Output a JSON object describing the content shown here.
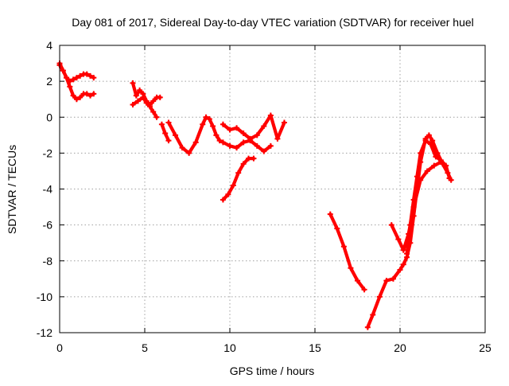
{
  "chart_data": {
    "type": "line",
    "title": "Day 081 of 2017, Sidereal Day-to-day VTEC variation (SDTVAR) for receiver huel",
    "xlabel": "GPS time / hours",
    "ylabel": "SDTVAR / TECUs",
    "xlim": [
      0,
      25
    ],
    "ylim": [
      -12,
      4
    ],
    "xticks": [
      0,
      5,
      10,
      15,
      20,
      25
    ],
    "yticks": [
      -12,
      -10,
      -8,
      -6,
      -4,
      -2,
      0,
      2,
      4
    ],
    "grid": true,
    "colors": {
      "series": "#ff0000"
    },
    "marker": "plus",
    "series": [
      {
        "x": [
          0.0,
          0.2,
          0.4,
          0.6,
          0.8,
          1.0,
          1.2,
          1.4,
          1.6,
          1.8,
          2.0
        ],
        "y": [
          3.0,
          2.6,
          2.2,
          2.0,
          2.1,
          2.2,
          2.3,
          2.4,
          2.4,
          2.3,
          2.2
        ]
      },
      {
        "x": [
          0.0,
          0.2,
          0.4,
          0.6,
          0.8,
          1.0,
          1.2,
          1.4,
          1.6,
          1.8,
          2.0
        ],
        "y": [
          2.9,
          2.6,
          2.2,
          1.7,
          1.2,
          1.0,
          1.1,
          1.3,
          1.3,
          1.2,
          1.3
        ]
      },
      {
        "x": [
          4.3,
          4.5,
          4.7,
          4.9,
          5.1,
          5.3,
          5.5,
          5.7,
          5.9
        ],
        "y": [
          1.9,
          1.2,
          1.5,
          1.3,
          0.9,
          0.7,
          0.9,
          1.1,
          1.1
        ]
      },
      {
        "x": [
          4.3,
          4.6,
          4.9,
          5.1,
          5.3,
          5.5,
          5.7
        ],
        "y": [
          0.7,
          0.9,
          1.1,
          0.8,
          0.6,
          0.3,
          0.0
        ]
      },
      {
        "x": [
          6.0,
          6.2,
          6.4
        ],
        "y": [
          -0.4,
          -0.9,
          -1.3
        ]
      },
      {
        "x": [
          6.4,
          6.8,
          7.2,
          7.6,
          8.0,
          8.4,
          8.6,
          8.8,
          9.0,
          9.2,
          9.4,
          9.6,
          10.0,
          10.4,
          10.8,
          11.2,
          11.6,
          12.0,
          12.4
        ],
        "y": [
          -0.3,
          -1.0,
          -1.7,
          -2.0,
          -1.4,
          -0.4,
          0.0,
          -0.1,
          -0.5,
          -1.0,
          -1.3,
          -1.4,
          -1.6,
          -1.7,
          -1.4,
          -1.3,
          -1.6,
          -1.9,
          -1.6
        ]
      },
      {
        "x": [
          9.6,
          10.0,
          10.4,
          10.8,
          11.2,
          11.6,
          12.0,
          12.4,
          12.8,
          13.2
        ],
        "y": [
          -0.4,
          -0.7,
          -0.6,
          -0.9,
          -1.2,
          -1.0,
          -0.5,
          0.1,
          -1.2,
          -0.3
        ]
      },
      {
        "x": [
          9.6,
          9.9,
          10.2,
          10.5,
          10.8,
          11.1,
          11.4
        ],
        "y": [
          -4.6,
          -4.3,
          -3.8,
          -3.1,
          -2.6,
          -2.3,
          -2.3
        ]
      },
      {
        "x": [
          15.9,
          16.3,
          16.7,
          17.1,
          17.5,
          17.9
        ],
        "y": [
          -5.4,
          -6.2,
          -7.2,
          -8.4,
          -9.1,
          -9.6
        ]
      },
      {
        "x": [
          18.1,
          18.4,
          18.8,
          19.2,
          19.6,
          20.0,
          20.2,
          20.4,
          20.6,
          20.8,
          21.0,
          21.2,
          21.5,
          21.7,
          21.9,
          22.2,
          22.5,
          22.8,
          23.0
        ],
        "y": [
          -11.7,
          -11.0,
          -10.0,
          -9.1,
          -9.0,
          -8.5,
          -8.2,
          -7.8,
          -7.0,
          -5.5,
          -4.0,
          -2.5,
          -1.2,
          -1.0,
          -1.3,
          -2.0,
          -2.6,
          -3.1,
          -3.5
        ]
      },
      {
        "x": [
          19.5,
          19.9,
          20.2,
          20.5,
          20.8,
          21.2,
          21.6,
          22.0,
          22.4
        ],
        "y": [
          -6.0,
          -6.8,
          -7.4,
          -6.5,
          -5.0,
          -3.5,
          -3.0,
          -2.7,
          -2.5
        ]
      },
      {
        "x": [
          20.4,
          20.6,
          20.8,
          21.0,
          21.2,
          21.5,
          21.8,
          22.1,
          22.4,
          22.7,
          22.9
        ],
        "y": [
          -7.6,
          -6.0,
          -4.6,
          -3.3,
          -2.0,
          -1.3,
          -1.5,
          -2.2,
          -2.4,
          -2.7,
          -3.4
        ]
      }
    ]
  }
}
